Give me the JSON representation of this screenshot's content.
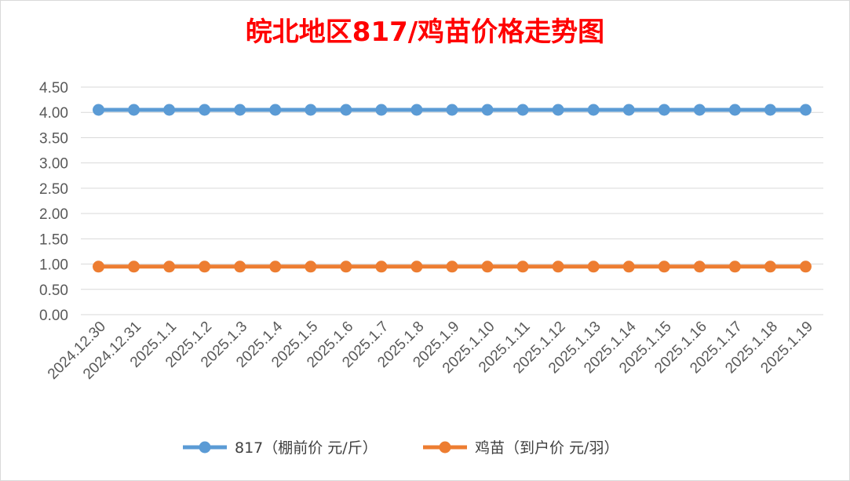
{
  "chart_data": {
    "type": "line",
    "title": "皖北地区817/鸡苗价格走势图",
    "xlabel": "",
    "ylabel": "",
    "ylim": [
      0,
      4.5
    ],
    "yticks": [
      "0.00",
      "0.50",
      "1.00",
      "1.50",
      "2.00",
      "2.50",
      "3.00",
      "3.50",
      "4.00",
      "4.50"
    ],
    "grid": true,
    "legend_position": "bottom",
    "categories": [
      "2024.12.30",
      "2024.12.31",
      "2025.1.1",
      "2025.1.2",
      "2025.1.3",
      "2025.1.4",
      "2025.1.5",
      "2025.1.6",
      "2025.1.7",
      "2025.1.8",
      "2025.1.9",
      "2025.1.10",
      "2025.1.11",
      "2025.1.12",
      "2025.1.13",
      "2025.1.14",
      "2025.1.15",
      "2025.1.16",
      "2025.1.17",
      "2025.1.18",
      "2025.1.19"
    ],
    "series": [
      {
        "name": "817（棚前价 元/斤）",
        "color": "#5b9bd5",
        "values": [
          4.05,
          4.05,
          4.05,
          4.05,
          4.05,
          4.05,
          4.05,
          4.05,
          4.05,
          4.05,
          4.05,
          4.05,
          4.05,
          4.05,
          4.05,
          4.05,
          4.05,
          4.05,
          4.05,
          4.05,
          4.05
        ]
      },
      {
        "name": "鸡苗（到户价 元/羽）",
        "color": "#ed7d31",
        "values": [
          0.95,
          0.95,
          0.95,
          0.95,
          0.95,
          0.95,
          0.95,
          0.95,
          0.95,
          0.95,
          0.95,
          0.95,
          0.95,
          0.95,
          0.95,
          0.95,
          0.95,
          0.95,
          0.95,
          0.95,
          0.95
        ]
      }
    ]
  }
}
